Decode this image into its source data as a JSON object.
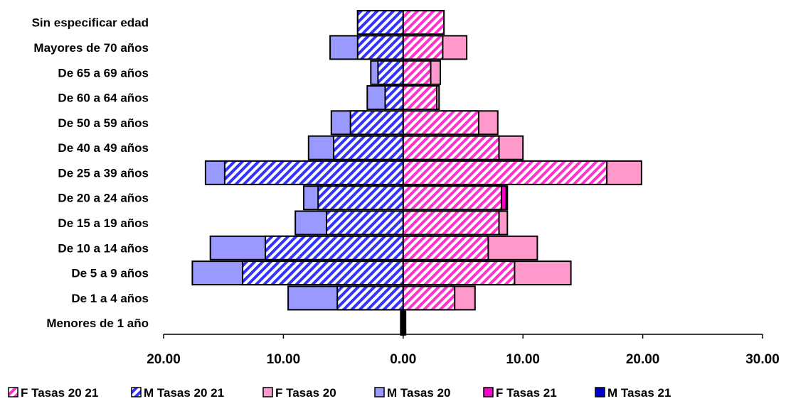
{
  "chart_data": {
    "type": "bar",
    "orientation": "horizontal",
    "layout": "population-pyramid",
    "categories": [
      "Sin especificar edad",
      "Mayores de 70 años",
      "De 65 a 69 años",
      "De 60 a 64 años",
      "De 50 a 59 años",
      "De 40 a 49 años",
      "De 25 a 39 años",
      "De 20 a 24 años",
      "De 15 a 19 años",
      "De 10 a 14 años",
      "De 5 a 9 años",
      "De 1 a 4 años",
      "Menores de 1 año"
    ],
    "series": [
      {
        "name": "F Tasas 20  21",
        "side": "right",
        "style": "hatch",
        "color": "#ff33cc",
        "values": [
          3.4,
          3.3,
          2.3,
          2.8,
          6.3,
          8.0,
          17.0,
          8.2,
          8.0,
          7.1,
          9.3,
          4.3,
          0.1
        ]
      },
      {
        "name": "M Tasas 20  21",
        "side": "left",
        "style": "hatch",
        "color": "#3333ff",
        "values": [
          3.8,
          3.8,
          2.1,
          1.5,
          4.4,
          5.8,
          14.9,
          7.1,
          6.4,
          11.5,
          13.4,
          5.5,
          0.1
        ]
      },
      {
        "name": "F Tasas 20",
        "side": "right",
        "style": "solid",
        "color": "#ff99cc",
        "values": [
          3.4,
          5.3,
          3.1,
          3.0,
          7.9,
          10.0,
          19.9,
          8.7,
          8.7,
          11.2,
          14.0,
          6.0,
          0.2
        ]
      },
      {
        "name": "M Tasas 20",
        "side": "left",
        "style": "solid",
        "color": "#9999ff",
        "values": [
          3.8,
          6.1,
          2.7,
          3.0,
          6.0,
          7.9,
          16.5,
          8.3,
          9.0,
          16.1,
          17.6,
          9.6,
          0.2
        ]
      },
      {
        "name": "F Tasas 21",
        "side": "right",
        "style": "solid",
        "color": "#ff00cc",
        "values": [
          0.0,
          0.0,
          0.0,
          0.0,
          0.0,
          0.0,
          0.0,
          8.6,
          0.0,
          0.0,
          0.0,
          0.0,
          0.0
        ]
      },
      {
        "name": "M Tasas 21",
        "side": "left",
        "style": "solid",
        "color": "#0000cc",
        "values": [
          0.0,
          0.0,
          0.0,
          0.0,
          0.0,
          0.0,
          0.0,
          0.0,
          0.0,
          0.0,
          0.0,
          0.0,
          0.2
        ]
      }
    ],
    "xlim": [
      -20,
      30
    ],
    "x_ticks": [
      "20.00",
      "10.00",
      "0.00",
      "10.00",
      "20.00",
      "30.00"
    ],
    "legend_position": "bottom",
    "grid": false,
    "title": "",
    "xlabel": "",
    "ylabel": ""
  }
}
